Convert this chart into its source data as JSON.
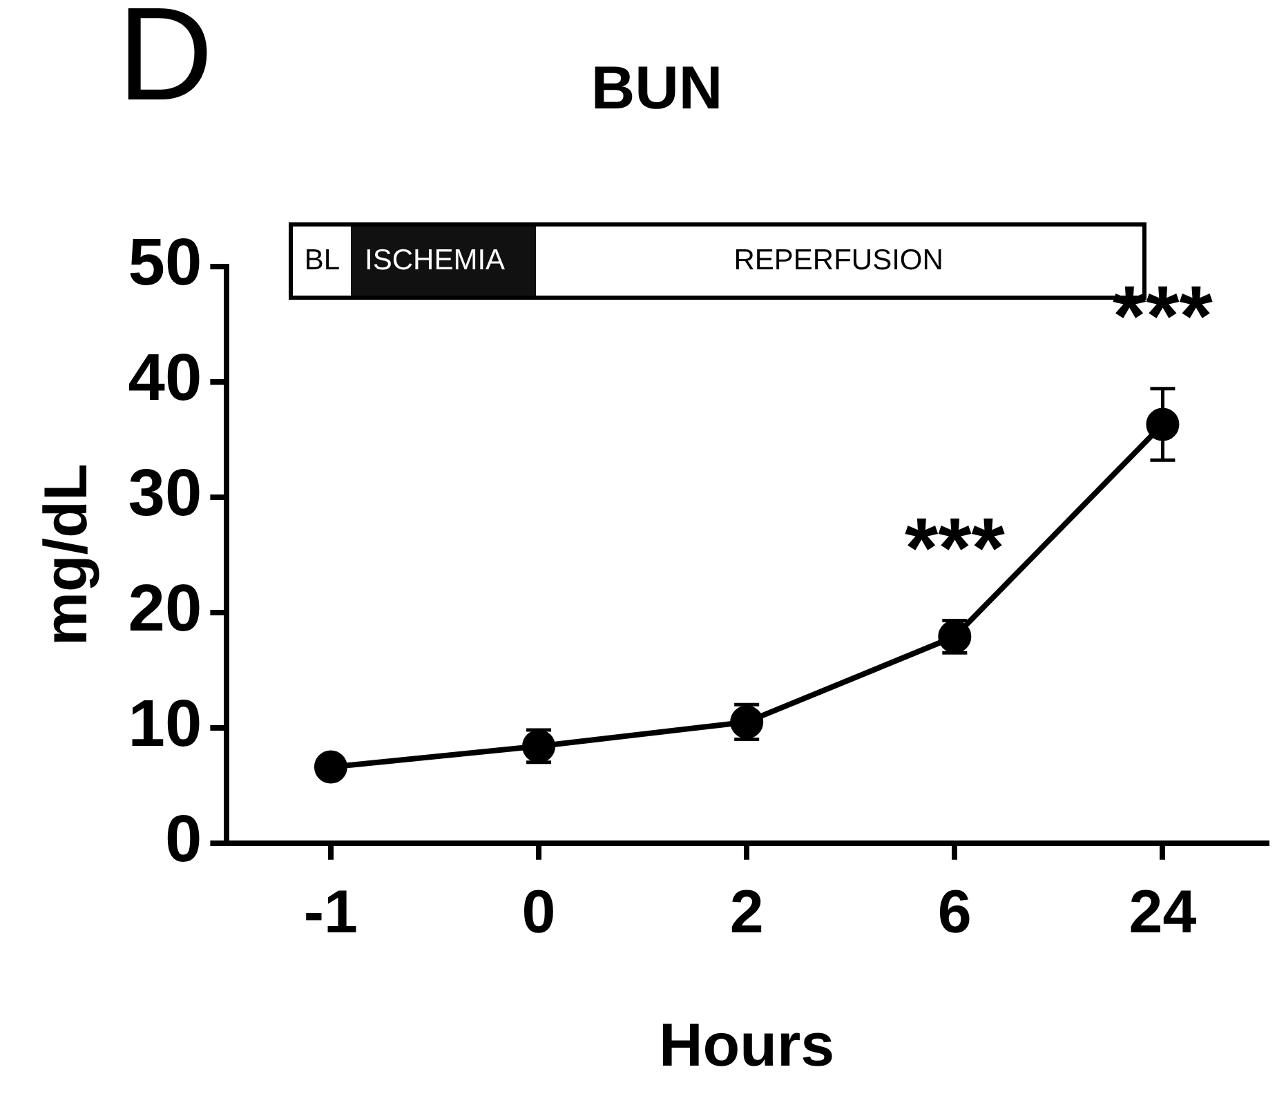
{
  "chart_data": {
    "type": "line",
    "title": "BUN",
    "xlabel": "Hours",
    "ylabel": "mg/dL",
    "categories": [
      "-1",
      "0",
      "2",
      "6",
      "24"
    ],
    "series": [
      {
        "color": "#000000",
        "values": [
          6.6,
          8.4,
          10.5,
          17.9,
          36.3
        ],
        "errors": [
          null,
          1.4,
          1.5,
          1.4,
          3.1
        ]
      }
    ],
    "ylim": [
      0,
      50
    ],
    "yticks": [
      0,
      10,
      20,
      30,
      40,
      50
    ],
    "grid": false,
    "legend": false,
    "marker": "circle",
    "line_style": "solid",
    "annotations": [
      "D",
      "BL",
      "ISCHEMIA",
      "REPERFUSION",
      "***",
      "***"
    ]
  }
}
